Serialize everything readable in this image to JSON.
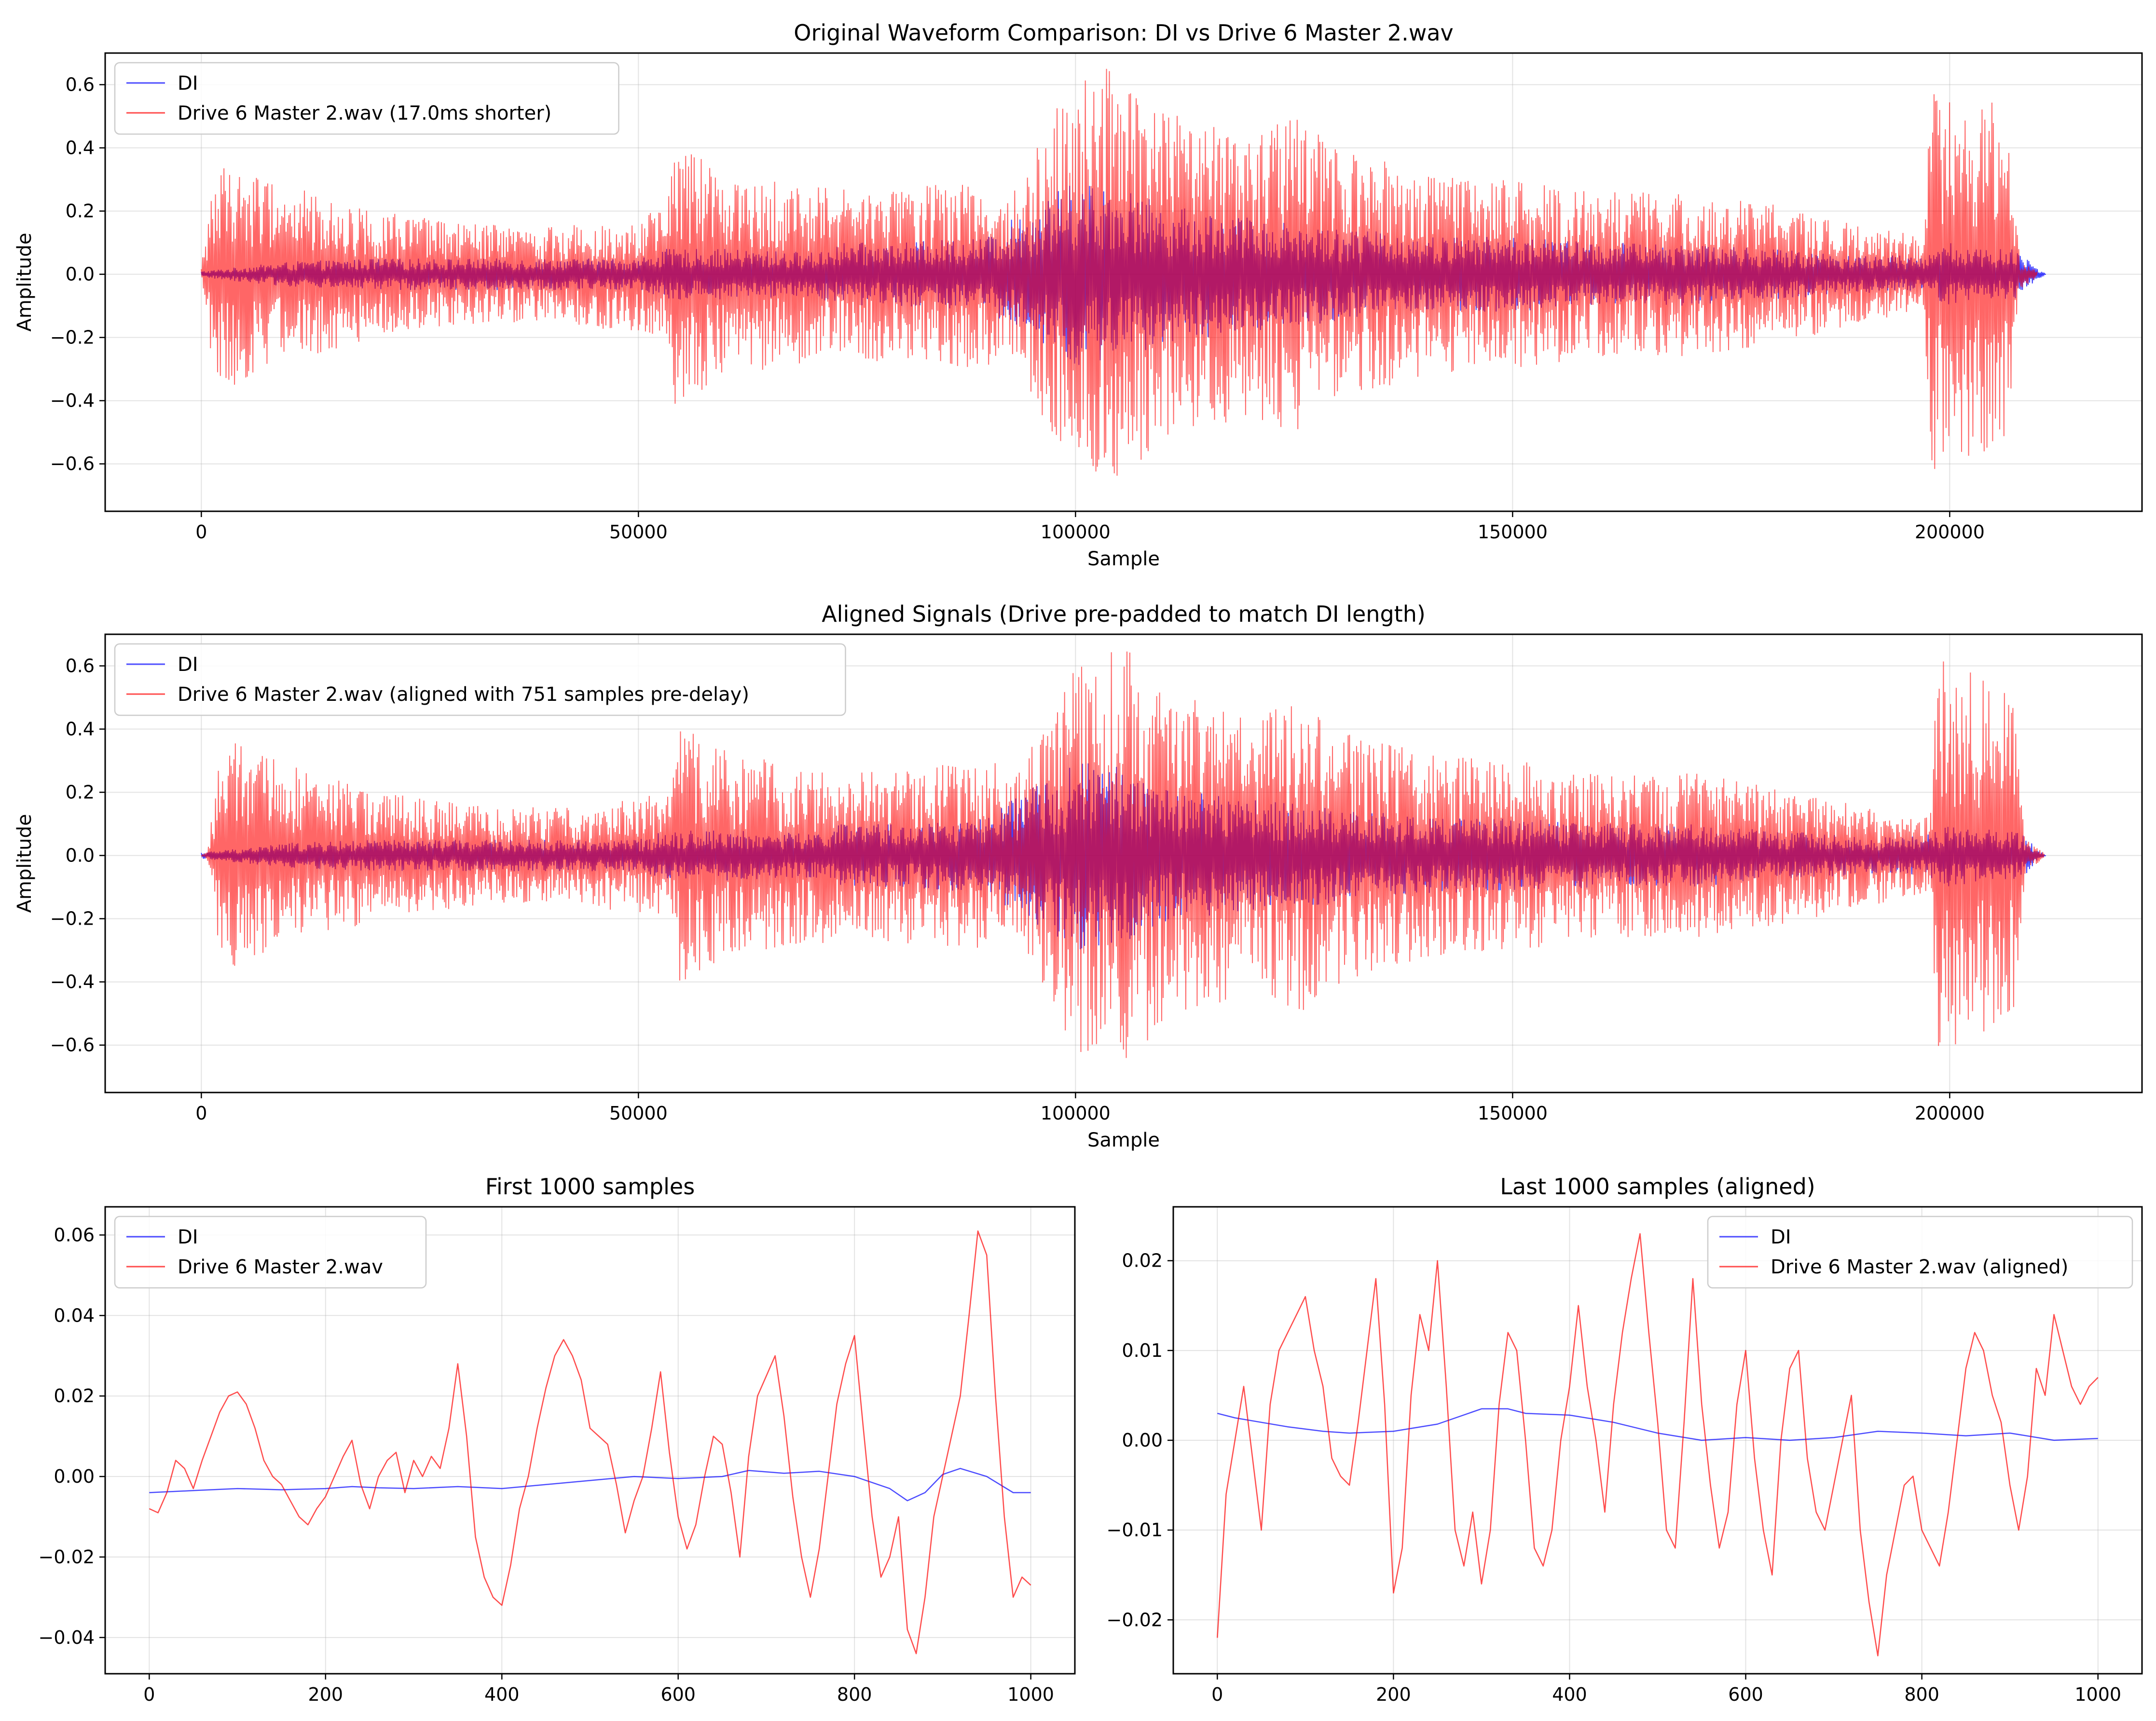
{
  "colors": {
    "di": "#0000ff",
    "drive": "#ff0000"
  },
  "chart_data": [
    {
      "type": "line",
      "title": "Original Waveform Comparison: DI vs Drive 6 Master 2.wav",
      "xlabel": "Sample",
      "ylabel": "Amplitude",
      "xlim": [
        -11000,
        222000
      ],
      "ylim": [
        -0.75,
        0.7
      ],
      "xticks": [
        0,
        50000,
        100000,
        150000,
        200000
      ],
      "yticks": [
        -0.6,
        -0.4,
        -0.2,
        0.0,
        0.2,
        0.4,
        0.6
      ],
      "xtick_labels": [
        "0",
        "50000",
        "100000",
        "150000",
        "200000"
      ],
      "ytick_labels": [
        "−0.6",
        "−0.4",
        "−0.2",
        "0.0",
        "0.2",
        "0.4",
        "0.6"
      ],
      "grid": true,
      "legend_position": "top-left",
      "series": [
        {
          "name": "DI",
          "color": "#0000ff",
          "x": [
            0,
            10000,
            20000,
            30000,
            40000,
            50000,
            53000,
            60000,
            70000,
            73000,
            80000,
            90000,
            93000,
            100000,
            105000,
            110000,
            120000,
            130000,
            140000,
            150000,
            160000,
            170000,
            180000,
            190000,
            197000,
            200000,
            205000,
            208000,
            210000,
            211000
          ],
          "envelope": [
            0.01,
            0.04,
            0.05,
            0.05,
            0.05,
            0.05,
            0.08,
            0.08,
            0.07,
            0.1,
            0.1,
            0.12,
            0.18,
            0.3,
            0.28,
            0.22,
            0.18,
            0.15,
            0.12,
            0.12,
            0.1,
            0.1,
            0.08,
            0.06,
            0.06,
            0.1,
            0.08,
            0.08,
            0.02,
            0.0
          ]
        },
        {
          "name": "Drive 6 Master 2.wav (17.0ms shorter)",
          "color": "#ff0000",
          "x": [
            0,
            1300,
            3000,
            10000,
            20000,
            30000,
            40000,
            53000,
            54000,
            60000,
            70000,
            73500,
            80000,
            90000,
            92000,
            98000,
            100000,
            105000,
            110000,
            120000,
            125000,
            130000,
            140000,
            150000,
            160000,
            170000,
            180000,
            190000,
            197000,
            198000,
            200000,
            205000,
            206500,
            208000,
            210000
          ],
          "envelope": [
            0.02,
            0.3,
            0.36,
            0.28,
            0.2,
            0.16,
            0.15,
            0.2,
            0.42,
            0.32,
            0.28,
            0.27,
            0.28,
            0.3,
            0.22,
            0.55,
            0.63,
            0.66,
            0.52,
            0.45,
            0.5,
            0.4,
            0.32,
            0.3,
            0.26,
            0.26,
            0.22,
            0.16,
            0.12,
            0.62,
            0.6,
            0.55,
            0.55,
            0.05,
            0.01
          ]
        }
      ]
    },
    {
      "type": "line",
      "title": "Aligned Signals (Drive pre-padded to match DI length)",
      "xlabel": "Sample",
      "ylabel": "Amplitude",
      "xlim": [
        -11000,
        222000
      ],
      "ylim": [
        -0.75,
        0.7
      ],
      "xticks": [
        0,
        50000,
        100000,
        150000,
        200000
      ],
      "yticks": [
        -0.6,
        -0.4,
        -0.2,
        0.0,
        0.2,
        0.4,
        0.6
      ],
      "xtick_labels": [
        "0",
        "50000",
        "100000",
        "150000",
        "200000"
      ],
      "ytick_labels": [
        "−0.6",
        "−0.4",
        "−0.2",
        "0.0",
        "0.2",
        "0.4",
        "0.6"
      ],
      "grid": true,
      "legend_position": "top-left",
      "series": [
        {
          "name": "DI",
          "color": "#0000ff",
          "x": [
            0,
            10000,
            20000,
            30000,
            40000,
            50000,
            53000,
            60000,
            70000,
            73000,
            80000,
            90000,
            93000,
            100000,
            105000,
            110000,
            120000,
            130000,
            140000,
            150000,
            160000,
            170000,
            180000,
            190000,
            197000,
            200000,
            205000,
            208000,
            210000,
            211000
          ],
          "envelope": [
            0.01,
            0.04,
            0.05,
            0.05,
            0.05,
            0.05,
            0.08,
            0.08,
            0.07,
            0.1,
            0.1,
            0.12,
            0.18,
            0.3,
            0.28,
            0.22,
            0.18,
            0.15,
            0.12,
            0.12,
            0.1,
            0.1,
            0.08,
            0.06,
            0.06,
            0.1,
            0.08,
            0.08,
            0.02,
            0.0
          ]
        },
        {
          "name": "Drive 6 Master 2.wav (aligned with 751 samples pre-delay)",
          "color": "#ff0000",
          "x": [
            0,
            751,
            2000,
            3700,
            10700,
            20700,
            30700,
            40700,
            53700,
            54700,
            60700,
            70700,
            74200,
            80700,
            90700,
            92700,
            98700,
            100700,
            105700,
            110700,
            120700,
            125700,
            130700,
            140700,
            150700,
            160700,
            170700,
            180700,
            190700,
            197700,
            198700,
            200700,
            205700,
            207200,
            208700,
            210800
          ],
          "envelope": [
            0.0,
            0.02,
            0.3,
            0.36,
            0.28,
            0.2,
            0.16,
            0.15,
            0.2,
            0.42,
            0.32,
            0.28,
            0.27,
            0.28,
            0.3,
            0.22,
            0.55,
            0.63,
            0.66,
            0.52,
            0.45,
            0.5,
            0.4,
            0.32,
            0.3,
            0.26,
            0.26,
            0.22,
            0.16,
            0.12,
            0.62,
            0.6,
            0.55,
            0.55,
            0.05,
            0.01
          ]
        }
      ]
    },
    {
      "type": "line",
      "title": "First 1000 samples",
      "xlim": [
        -50,
        1050
      ],
      "ylim": [
        -0.049,
        0.067
      ],
      "xticks": [
        0,
        200,
        400,
        600,
        800,
        1000
      ],
      "yticks": [
        -0.04,
        -0.02,
        0.0,
        0.02,
        0.04,
        0.06
      ],
      "xtick_labels": [
        "0",
        "200",
        "400",
        "600",
        "800",
        "1000"
      ],
      "ytick_labels": [
        "−0.04",
        "−0.02",
        "0.00",
        "0.02",
        "0.04",
        "0.06"
      ],
      "grid": true,
      "legend_position": "top-left",
      "series": [
        {
          "name": "DI",
          "color": "#0000ff",
          "x": [
            0,
            50,
            100,
            150,
            200,
            230,
            260,
            300,
            350,
            400,
            450,
            500,
            550,
            600,
            650,
            680,
            720,
            760,
            800,
            840,
            860,
            880,
            900,
            920,
            950,
            980,
            1000
          ],
          "y": [
            -0.004,
            -0.0035,
            -0.003,
            -0.0033,
            -0.003,
            -0.0025,
            -0.0028,
            -0.003,
            -0.0025,
            -0.003,
            -0.002,
            -0.001,
            0.0,
            -0.0005,
            0.0,
            0.0015,
            0.0008,
            0.0013,
            0.0,
            -0.003,
            -0.006,
            -0.004,
            0.0005,
            0.002,
            0.0,
            -0.004,
            -0.004
          ]
        },
        {
          "name": "Drive 6 Master 2.wav",
          "color": "#ff0000",
          "x": [
            0,
            10,
            20,
            30,
            40,
            50,
            60,
            70,
            80,
            90,
            100,
            110,
            120,
            130,
            140,
            150,
            160,
            170,
            180,
            190,
            200,
            210,
            220,
            230,
            240,
            250,
            260,
            270,
            280,
            290,
            300,
            310,
            320,
            330,
            340,
            350,
            360,
            370,
            380,
            390,
            400,
            410,
            420,
            430,
            440,
            450,
            460,
            470,
            480,
            490,
            500,
            510,
            520,
            530,
            540,
            550,
            560,
            570,
            580,
            590,
            600,
            610,
            620,
            630,
            640,
            650,
            660,
            670,
            680,
            690,
            700,
            710,
            720,
            730,
            740,
            750,
            760,
            770,
            780,
            790,
            800,
            810,
            820,
            830,
            840,
            850,
            860,
            870,
            880,
            890,
            900,
            910,
            920,
            930,
            940,
            950,
            960,
            970,
            980,
            990,
            1000
          ],
          "y": [
            -0.008,
            -0.009,
            -0.004,
            0.004,
            0.002,
            -0.003,
            0.004,
            0.01,
            0.016,
            0.02,
            0.021,
            0.018,
            0.012,
            0.004,
            0.0,
            -0.002,
            -0.006,
            -0.01,
            -0.012,
            -0.008,
            -0.005,
            0.0,
            0.005,
            0.009,
            -0.002,
            -0.008,
            0.0,
            0.004,
            0.006,
            -0.004,
            0.004,
            0.0,
            0.005,
            0.002,
            0.012,
            0.028,
            0.01,
            -0.015,
            -0.025,
            -0.03,
            -0.032,
            -0.022,
            -0.008,
            0.0,
            0.012,
            0.022,
            0.03,
            0.034,
            0.03,
            0.024,
            0.012,
            0.01,
            0.008,
            -0.002,
            -0.014,
            -0.006,
            0.0,
            0.012,
            0.026,
            0.006,
            -0.01,
            -0.018,
            -0.012,
            0.0,
            0.01,
            0.008,
            -0.004,
            -0.02,
            0.005,
            0.02,
            0.025,
            0.03,
            0.015,
            -0.005,
            -0.02,
            -0.03,
            -0.018,
            0.0,
            0.018,
            0.028,
            0.035,
            0.012,
            -0.01,
            -0.025,
            -0.02,
            -0.01,
            -0.038,
            -0.044,
            -0.03,
            -0.01,
            0.0,
            0.01,
            0.02,
            0.04,
            0.061,
            0.055,
            0.02,
            -0.01,
            -0.03,
            -0.025,
            -0.027
          ]
        }
      ]
    },
    {
      "type": "line",
      "title": "Last 1000 samples (aligned)",
      "xlim": [
        -50,
        1050
      ],
      "ylim": [
        -0.026,
        0.026
      ],
      "xticks": [
        0,
        200,
        400,
        600,
        800,
        1000
      ],
      "yticks": [
        -0.02,
        -0.01,
        0.0,
        0.01,
        0.02
      ],
      "xtick_labels": [
        "0",
        "200",
        "400",
        "600",
        "800",
        "1000"
      ],
      "ytick_labels": [
        "−0.02",
        "−0.01",
        "0.00",
        "0.01",
        "0.02"
      ],
      "grid": true,
      "legend_position": "top-right",
      "series": [
        {
          "name": "DI",
          "color": "#0000ff",
          "x": [
            0,
            20,
            50,
            80,
            120,
            150,
            200,
            250,
            300,
            330,
            350,
            400,
            450,
            500,
            550,
            600,
            650,
            700,
            750,
            800,
            850,
            900,
            950,
            1000
          ],
          "y": [
            0.003,
            0.0025,
            0.002,
            0.0015,
            0.001,
            0.0008,
            0.001,
            0.0018,
            0.0035,
            0.0035,
            0.003,
            0.0028,
            0.002,
            0.0008,
            0.0,
            0.0003,
            0.0,
            0.0003,
            0.001,
            0.0008,
            0.0005,
            0.0008,
            0.0,
            0.0002
          ]
        },
        {
          "name": "Drive 6 Master 2.wav (aligned)",
          "color": "#ff0000",
          "x": [
            0,
            10,
            20,
            30,
            40,
            50,
            60,
            70,
            80,
            90,
            100,
            110,
            120,
            130,
            140,
            150,
            160,
            170,
            180,
            190,
            200,
            210,
            220,
            230,
            240,
            250,
            260,
            270,
            280,
            290,
            300,
            310,
            320,
            330,
            340,
            350,
            360,
            370,
            380,
            390,
            400,
            410,
            420,
            430,
            440,
            450,
            460,
            470,
            480,
            490,
            500,
            510,
            520,
            530,
            540,
            550,
            560,
            570,
            580,
            590,
            600,
            610,
            620,
            630,
            640,
            650,
            660,
            670,
            680,
            690,
            700,
            710,
            720,
            730,
            740,
            750,
            760,
            770,
            780,
            790,
            800,
            810,
            820,
            830,
            840,
            850,
            860,
            870,
            880,
            890,
            900,
            910,
            920,
            930,
            940,
            950,
            960,
            970,
            980,
            990,
            1000
          ],
          "y": [
            -0.022,
            -0.006,
            0.0,
            0.006,
            -0.002,
            -0.01,
            0.004,
            0.01,
            0.012,
            0.014,
            0.016,
            0.01,
            0.006,
            -0.002,
            -0.004,
            -0.005,
            0.002,
            0.01,
            0.018,
            0.004,
            -0.017,
            -0.012,
            0.005,
            0.014,
            0.01,
            0.02,
            0.006,
            -0.01,
            -0.014,
            -0.008,
            -0.016,
            -0.01,
            0.004,
            0.012,
            0.01,
            0.0,
            -0.012,
            -0.014,
            -0.01,
            0.0,
            0.006,
            0.015,
            0.006,
            0.0,
            -0.008,
            0.004,
            0.012,
            0.018,
            0.023,
            0.012,
            0.002,
            -0.01,
            -0.012,
            0.002,
            0.018,
            0.004,
            -0.005,
            -0.012,
            -0.008,
            0.004,
            0.01,
            -0.002,
            -0.01,
            -0.015,
            0.0,
            0.008,
            0.01,
            -0.002,
            -0.008,
            -0.01,
            -0.005,
            0.0,
            0.005,
            -0.01,
            -0.018,
            -0.024,
            -0.015,
            -0.01,
            -0.005,
            -0.004,
            -0.01,
            -0.012,
            -0.014,
            -0.008,
            0.0,
            0.008,
            0.012,
            0.01,
            0.005,
            0.002,
            -0.005,
            -0.01,
            -0.004,
            0.008,
            0.005,
            0.014,
            0.01,
            0.006,
            0.004,
            0.006,
            0.007
          ]
        }
      ]
    }
  ]
}
